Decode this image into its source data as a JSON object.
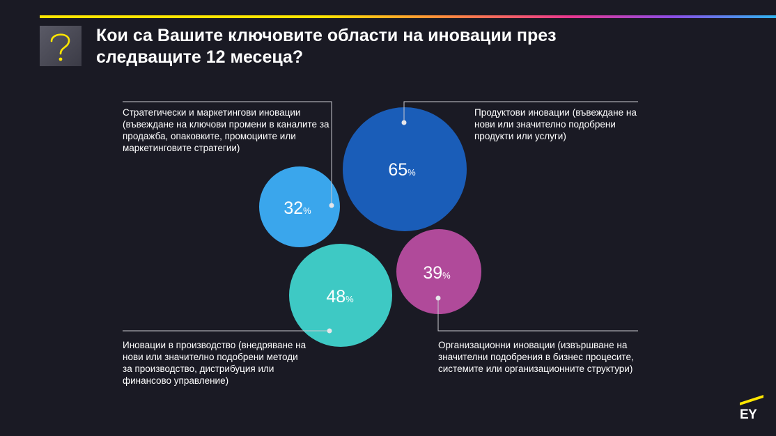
{
  "header": {
    "title": "Кои са Вашите ключовите области на иновации през следващите 12 месеца?",
    "icon": "question-mark-icon"
  },
  "brand": {
    "logo_text": "EY",
    "accent": "#ffe600"
  },
  "chart_data": {
    "type": "bubble",
    "unit": "%",
    "items": [
      {
        "value": 32,
        "label": "Стратегически и маркетингови иновации (въвеждане на ключови промени в каналите за продажба, опаковките, промоциите или маркетинговите стратегии)",
        "color": "#3aa6ec"
      },
      {
        "value": 65,
        "label": "Продуктови иновации (въвеждане на нови или значително подобрени продукти или услуги)",
        "color": "#1a5db8"
      },
      {
        "value": 48,
        "label": "Иновации в производство (внедряване на нови или значително подобрени методи за производство, дистрибуция или финансово управление)",
        "color": "#3ec9c4"
      },
      {
        "value": 39,
        "label": "Организационни иновации (извършване на значителни подобрения в бизнес процесите, системите или организационните структури)",
        "color": "#b04a9a"
      }
    ]
  }
}
